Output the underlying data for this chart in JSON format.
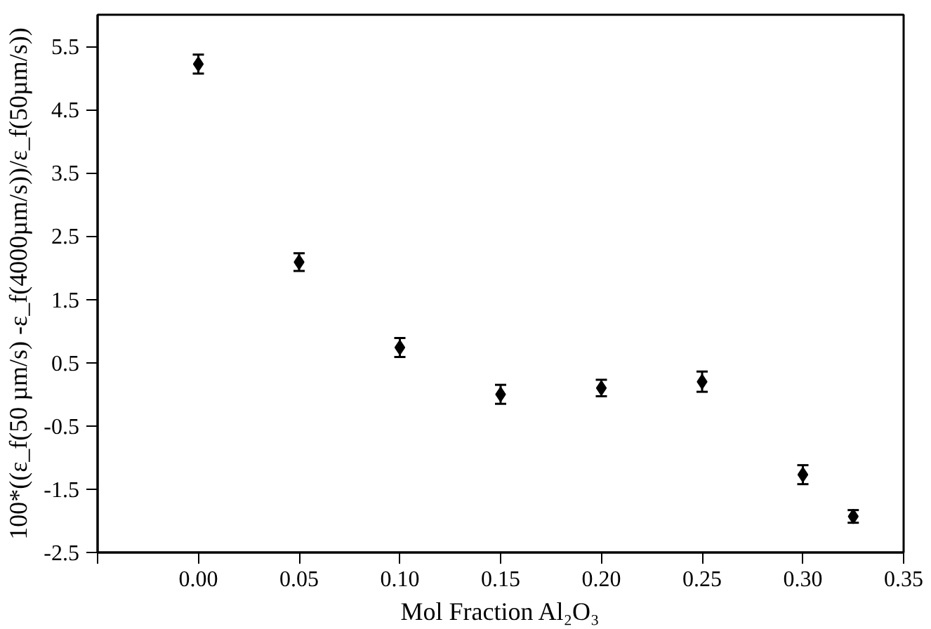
{
  "chart_data": {
    "type": "scatter",
    "xlabel": "Mol Fraction Al₂O₃",
    "ylabel": "100*((ε_f(50 µm/s) -ε_f(4000µm/s))/ε_f(50µm/s))",
    "x": [
      0.0,
      0.05,
      0.1,
      0.15,
      0.2,
      0.25,
      0.3,
      0.325
    ],
    "values": [
      5.22,
      2.09,
      0.74,
      0.0,
      0.1,
      0.2,
      -1.27,
      -1.93
    ],
    "errors": [
      0.15,
      0.14,
      0.15,
      0.15,
      0.13,
      0.16,
      0.15,
      0.1
    ],
    "color": "#000000",
    "marker": "diamond",
    "grid": false,
    "xlim": [
      -0.05,
      0.35
    ],
    "ylim": [
      -2.5,
      6.0
    ],
    "xticks": [
      {
        "value": -0.05,
        "label": null
      },
      {
        "value": 0.0,
        "label": "0.00"
      },
      {
        "value": 0.05,
        "label": "0.05"
      },
      {
        "value": 0.1,
        "label": "0.10"
      },
      {
        "value": 0.15,
        "label": "0.15"
      },
      {
        "value": 0.2,
        "label": "0.20"
      },
      {
        "value": 0.25,
        "label": "0.25"
      },
      {
        "value": 0.3,
        "label": "0.30"
      },
      {
        "value": 0.35,
        "label": "0.35"
      }
    ],
    "yticks": [
      5.5,
      4.5,
      3.5,
      2.5,
      1.5,
      0.5,
      -0.5,
      -1.5,
      -2.5
    ]
  }
}
